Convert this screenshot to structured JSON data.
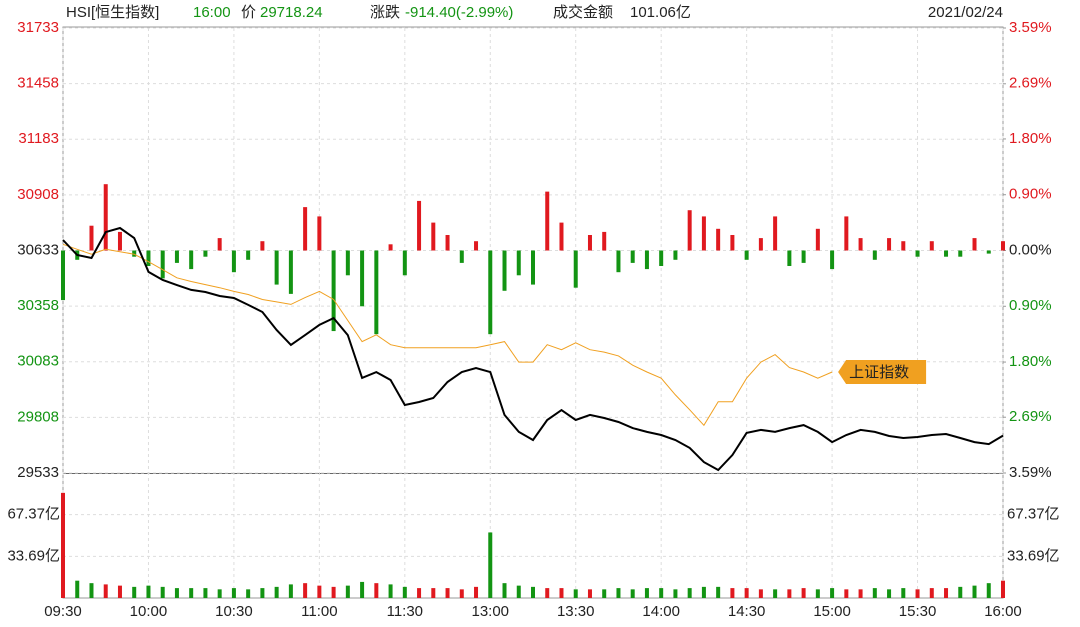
{
  "chart_data": {
    "type": "line",
    "title": "HSI[恒生指数]",
    "header": {
      "time": "16:00",
      "price_label": "价",
      "price": 29718.24,
      "change_label": "涨跌",
      "change": "-914.40(-2.99%)",
      "amount_label": "成交金额",
      "amount": "101.06亿"
    },
    "date": "2021/02/24",
    "up_color": "#e0191f",
    "down_color": "#139413",
    "grid": true,
    "x": [
      0,
      5,
      10,
      15,
      20,
      25,
      30,
      35,
      40,
      45,
      50,
      55,
      60,
      65,
      70,
      75,
      80,
      85,
      90,
      95,
      100,
      105,
      110,
      115,
      120,
      125,
      130,
      135,
      140,
      145,
      150,
      155,
      160,
      165,
      170,
      175,
      180,
      185,
      190,
      195,
      200,
      205,
      210,
      215,
      220,
      225,
      230,
      235,
      240,
      245,
      250,
      255,
      260,
      265,
      270,
      275,
      280,
      285,
      290,
      295,
      300,
      305,
      310,
      315,
      320,
      325,
      330
    ],
    "xlim": [
      0,
      330
    ],
    "xticks": [
      {
        "value": 0,
        "label": "09:30"
      },
      {
        "value": 30,
        "label": "10:00"
      },
      {
        "value": 60,
        "label": "10:30"
      },
      {
        "value": 90,
        "label": "11:00"
      },
      {
        "value": 120,
        "label": "11:30"
      },
      {
        "value": 150,
        "label": "13:00"
      },
      {
        "value": 180,
        "label": "13:30"
      },
      {
        "value": 210,
        "label": "14:00"
      },
      {
        "value": 240,
        "label": "14:30"
      },
      {
        "value": 270,
        "label": "15:00"
      },
      {
        "value": 300,
        "label": "15:30"
      },
      {
        "value": 330,
        "label": "16:00"
      }
    ],
    "ylim": [
      29533,
      31733
    ],
    "yticks": [
      31733,
      31458,
      31183,
      30908,
      30633,
      30358,
      30083,
      29808,
      29533
    ],
    "y2lim": [
      -3.59,
      3.59
    ],
    "y2ticks": [
      {
        "value": 3.59,
        "label": "3.59%"
      },
      {
        "value": 2.69,
        "label": "2.69%"
      },
      {
        "value": 1.8,
        "label": "1.80%"
      },
      {
        "value": 0.9,
        "label": "0.90%"
      },
      {
        "value": 0,
        "label": "0.00%"
      },
      {
        "value": -0.9,
        "label": "0.90%"
      },
      {
        "value": -1.8,
        "label": "1.80%"
      },
      {
        "value": -2.69,
        "label": "2.69%"
      },
      {
        "value": -3.59,
        "label": "3.59%"
      }
    ],
    "series": [
      {
        "color": "#000000",
        "values": [
          30685,
          30611,
          30596,
          30724,
          30744,
          30695,
          30527,
          30487,
          30462,
          30438,
          30428,
          30408,
          30398,
          30364,
          30329,
          30240,
          30166,
          30215,
          30265,
          30299,
          30215,
          30003,
          30032,
          29993,
          29869,
          29884,
          29904,
          29983,
          30032,
          30052,
          30032,
          29820,
          29736,
          29696,
          29795,
          29844,
          29795,
          29820,
          29805,
          29785,
          29755,
          29736,
          29721,
          29696,
          29657,
          29587,
          29548,
          29622,
          29731,
          29746,
          29736,
          29755,
          29770,
          29736,
          29686,
          29721,
          29746,
          29736,
          29716,
          29706,
          29711,
          29721,
          29726,
          29706,
          29686,
          29676,
          29718
        ]
      },
      {
        "name": "上证指数",
        "color": "#f0a020",
        "axis": "y2",
        "values": [
          0.1,
          0.02,
          -0.06,
          0.02,
          -0.02,
          -0.06,
          -0.18,
          -0.31,
          -0.44,
          -0.5,
          -0.55,
          -0.6,
          -0.66,
          -0.71,
          -0.79,
          -0.83,
          -0.87,
          -0.76,
          -0.66,
          -0.79,
          -1.13,
          -1.47,
          -1.36,
          -1.52,
          -1.57,
          -1.57,
          -1.57,
          -1.57,
          -1.57,
          -1.57,
          -1.52,
          -1.47,
          -1.8,
          -1.8,
          -1.52,
          -1.6,
          -1.49,
          -1.6,
          -1.64,
          -1.7,
          -1.85,
          -1.96,
          -2.06,
          -2.33,
          -2.57,
          -2.82,
          -2.44,
          -2.44,
          -2.06,
          -1.8,
          -1.68,
          -1.89,
          -1.96,
          -2.06,
          -1.96,
          null,
          null,
          null,
          null,
          null,
          null,
          null,
          null,
          null,
          null,
          null,
          null
        ]
      }
    ],
    "bars": {
      "axis": "y2",
      "values": [
        -0.8,
        -0.15,
        0.4,
        1.07,
        0.3,
        -0.1,
        -0.25,
        -0.45,
        -0.2,
        -0.3,
        -0.1,
        0.2,
        -0.35,
        -0.15,
        0.15,
        -0.55,
        -0.7,
        0.7,
        0.55,
        -1.3,
        -0.4,
        -0.9,
        -1.35,
        0.1,
        -0.4,
        0.8,
        0.45,
        0.25,
        -0.2,
        0.15,
        -1.35,
        -0.65,
        -0.4,
        -0.55,
        0.95,
        0.45,
        -0.6,
        0.25,
        0.3,
        -0.35,
        -0.2,
        -0.3,
        -0.25,
        -0.15,
        0.65,
        0.55,
        0.35,
        0.25,
        -0.15,
        0.2,
        0.55,
        -0.25,
        -0.2,
        0.35,
        -0.3,
        0.55,
        0.2,
        -0.15,
        0.2,
        0.15,
        -0.1,
        0.15,
        -0.1,
        -0.1,
        0.2,
        -0.05,
        0.15
      ]
    },
    "volume": {
      "ylim": [
        0,
        101.06
      ],
      "yticks": [
        {
          "value": 67.37,
          "label": "67.37亿"
        },
        {
          "value": 33.69,
          "label": "33.69亿"
        }
      ],
      "values": [
        85,
        14,
        12,
        11,
        10,
        9,
        10,
        9,
        8,
        8,
        8,
        7,
        8,
        7,
        8,
        9,
        11,
        12,
        10,
        9,
        10,
        13,
        12,
        11,
        9,
        8,
        8,
        8,
        7,
        9,
        53,
        12,
        10,
        9,
        8,
        8,
        7,
        7,
        7,
        8,
        7,
        8,
        8,
        7,
        8,
        9,
        9,
        8,
        8,
        7,
        7,
        7,
        8,
        7,
        8,
        7,
        7,
        8,
        7,
        8,
        7,
        8,
        8,
        9,
        10,
        12,
        14
      ]
    }
  }
}
